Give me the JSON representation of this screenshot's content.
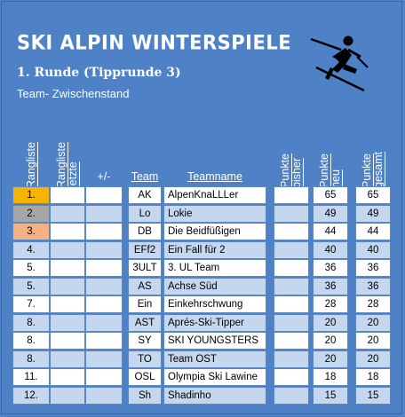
{
  "header": {
    "title": "SKI ALPIN WINTERSPIELE",
    "subtitle": "1. Runde (Tipprunde 3)",
    "caption": "Team- Zwischenstand"
  },
  "columns": {
    "rangliste": "Rangliste",
    "rangliste_letzte": "Rangliste\nletzte",
    "plusminus": "+/-",
    "team": "Team",
    "teamname": "Teamname",
    "punkte_bisher": "Punkte\nbisher",
    "punkte_neu": "Punkte\nneu",
    "punkte_gesamt": "Punkte\ngesamt"
  },
  "colors": {
    "background": "#4f81c6",
    "row_white": "#ffffff",
    "row_blue": "#c5d7ee",
    "gold": "#f5b400",
    "silver": "#a6a6a6",
    "bronze": "#f4b183"
  },
  "icon": "skier-icon",
  "rows": [
    {
      "rank": "1.",
      "team": "AK",
      "name": "AlpenKnaLLLer",
      "neu": "65",
      "gesamt": "65",
      "medal": "gold"
    },
    {
      "rank": "2.",
      "team": "Lo",
      "name": "Lokie",
      "neu": "49",
      "gesamt": "49",
      "medal": "silver"
    },
    {
      "rank": "3.",
      "team": "DB",
      "name": "Die Beidfüßigen",
      "neu": "44",
      "gesamt": "44",
      "medal": "bronze"
    },
    {
      "rank": "4.",
      "team": "EFf2",
      "name": "Ein Fall für 2",
      "neu": "40",
      "gesamt": "40",
      "medal": ""
    },
    {
      "rank": "5.",
      "team": "3ULT",
      "name": "3. UL Team",
      "neu": "36",
      "gesamt": "36",
      "medal": ""
    },
    {
      "rank": "5.",
      "team": "AS",
      "name": "Achse Süd",
      "neu": "36",
      "gesamt": "36",
      "medal": ""
    },
    {
      "rank": "7.",
      "team": "Ein",
      "name": "Einkehrschwung",
      "neu": "28",
      "gesamt": "28",
      "medal": ""
    },
    {
      "rank": "8.",
      "team": "AST",
      "name": "Aprés-Ski-Tipper",
      "neu": "20",
      "gesamt": "20",
      "medal": ""
    },
    {
      "rank": "8.",
      "team": "SY",
      "name": "SKI YOUNGSTERS",
      "neu": "20",
      "gesamt": "20",
      "medal": ""
    },
    {
      "rank": "8.",
      "team": "TO",
      "name": "Team OST",
      "neu": "20",
      "gesamt": "20",
      "medal": ""
    },
    {
      "rank": "11.",
      "team": "OSL",
      "name": "Olympia Ski Lawine",
      "neu": "18",
      "gesamt": "18",
      "medal": ""
    },
    {
      "rank": "12.",
      "team": "Sh",
      "name": "Shadinho",
      "neu": "15",
      "gesamt": "15",
      "medal": ""
    }
  ]
}
